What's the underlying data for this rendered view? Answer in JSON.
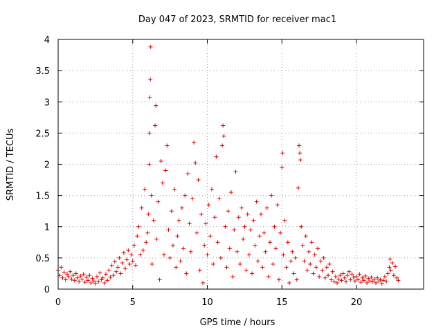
{
  "chart_data": {
    "type": "scatter",
    "title": "Day 047 of 2023, SRMTID for receiver mac1",
    "xlabel": "GPS time / hours",
    "ylabel": "SRMTID / TECUs",
    "xlim": [
      0,
      24.5
    ],
    "ylim": [
      0,
      4
    ],
    "xticks": [
      0,
      5,
      10,
      15,
      20
    ],
    "yticks": [
      0,
      0.5,
      1,
      1.5,
      2,
      2.5,
      3,
      3.5,
      4
    ],
    "xtick_labels": [
      "0",
      "5",
      "10",
      "15",
      "20"
    ],
    "ytick_labels": [
      "0",
      "0.5",
      "1",
      "1.5",
      "2",
      "2.5",
      "3",
      "3.5",
      "4"
    ],
    "grid": true,
    "marker": "+",
    "series": [
      {
        "name": "SRMTID",
        "color": "#e00000",
        "points": [
          [
            0.0,
            0.3
          ],
          [
            0.1,
            0.22
          ],
          [
            0.2,
            0.35
          ],
          [
            0.3,
            0.18
          ],
          [
            0.4,
            0.27
          ],
          [
            0.5,
            0.15
          ],
          [
            0.6,
            0.24
          ],
          [
            0.7,
            0.2
          ],
          [
            0.8,
            0.28
          ],
          [
            0.9,
            0.16
          ],
          [
            1.0,
            0.22
          ],
          [
            1.1,
            0.14
          ],
          [
            1.2,
            0.25
          ],
          [
            1.3,
            0.18
          ],
          [
            1.4,
            0.12
          ],
          [
            1.5,
            0.21
          ],
          [
            1.6,
            0.16
          ],
          [
            1.7,
            0.24
          ],
          [
            1.8,
            0.11
          ],
          [
            1.9,
            0.19
          ],
          [
            2.0,
            0.14
          ],
          [
            2.1,
            0.22
          ],
          [
            2.2,
            0.1
          ],
          [
            2.3,
            0.17
          ],
          [
            2.4,
            0.13
          ],
          [
            2.5,
            0.09
          ],
          [
            2.6,
            0.2
          ],
          [
            2.7,
            0.12
          ],
          [
            2.8,
            0.26
          ],
          [
            2.9,
            0.15
          ],
          [
            3.0,
            0.18
          ],
          [
            3.1,
            0.1
          ],
          [
            3.2,
            0.24
          ],
          [
            3.3,
            0.14
          ],
          [
            3.4,
            0.3
          ],
          [
            3.5,
            0.19
          ],
          [
            3.6,
            0.38
          ],
          [
            3.7,
            0.22
          ],
          [
            3.8,
            0.44
          ],
          [
            3.9,
            0.28
          ],
          [
            4.0,
            0.35
          ],
          [
            4.1,
            0.5
          ],
          [
            4.2,
            0.25
          ],
          [
            4.3,
            0.42
          ],
          [
            4.4,
            0.58
          ],
          [
            4.5,
            0.33
          ],
          [
            4.6,
            0.47
          ],
          [
            4.7,
            0.62
          ],
          [
            4.8,
            0.4
          ],
          [
            4.9,
            0.55
          ],
          [
            5.0,
            0.45
          ],
          [
            5.1,
            0.7
          ],
          [
            5.2,
            0.38
          ],
          [
            5.3,
            0.85
          ],
          [
            5.4,
            1.0
          ],
          [
            5.5,
            0.55
          ],
          [
            5.6,
            1.3
          ],
          [
            5.7,
            0.62
          ],
          [
            5.8,
            1.6
          ],
          [
            5.9,
            0.75
          ],
          [
            6.0,
            0.9
          ],
          [
            6.05,
            1.2
          ],
          [
            6.1,
            2.0
          ],
          [
            6.12,
            2.5
          ],
          [
            6.15,
            3.07
          ],
          [
            6.18,
            3.36
          ],
          [
            6.2,
            3.88
          ],
          [
            6.25,
            1.5
          ],
          [
            6.3,
            0.4
          ],
          [
            6.4,
            1.1
          ],
          [
            6.5,
            2.62
          ],
          [
            6.55,
            2.94
          ],
          [
            6.6,
            0.8
          ],
          [
            6.7,
            1.4
          ],
          [
            6.8,
            0.15
          ],
          [
            6.9,
            2.05
          ],
          [
            7.0,
            1.7
          ],
          [
            7.1,
            0.55
          ],
          [
            7.2,
            1.9
          ],
          [
            7.3,
            2.3
          ],
          [
            7.4,
            0.95
          ],
          [
            7.5,
            0.5
          ],
          [
            7.6,
            1.25
          ],
          [
            7.7,
            0.7
          ],
          [
            7.8,
            1.6
          ],
          [
            7.9,
            0.35
          ],
          [
            8.0,
            0.85
          ],
          [
            8.1,
            1.1
          ],
          [
            8.2,
            0.45
          ],
          [
            8.3,
            1.3
          ],
          [
            8.4,
            0.65
          ],
          [
            8.5,
            1.5
          ],
          [
            8.6,
            0.25
          ],
          [
            8.7,
            1.85
          ],
          [
            8.8,
            1.05
          ],
          [
            8.9,
            0.6
          ],
          [
            9.0,
            1.45
          ],
          [
            9.1,
            2.35
          ],
          [
            9.2,
            2.02
          ],
          [
            9.3,
            0.9
          ],
          [
            9.4,
            1.75
          ],
          [
            9.5,
            0.3
          ],
          [
            9.6,
            1.2
          ],
          [
            9.7,
            0.1
          ],
          [
            9.8,
            0.7
          ],
          [
            9.9,
            1.05
          ],
          [
            10.0,
            0.55
          ],
          [
            10.1,
            1.35
          ],
          [
            10.2,
            0.85
          ],
          [
            10.3,
            1.6
          ],
          [
            10.4,
            0.4
          ],
          [
            10.5,
            1.15
          ],
          [
            10.6,
            2.12
          ],
          [
            10.7,
            0.75
          ],
          [
            10.8,
            1.45
          ],
          [
            10.9,
            0.5
          ],
          [
            11.0,
            2.3
          ],
          [
            11.05,
            2.62
          ],
          [
            11.1,
            2.45
          ],
          [
            11.2,
            1.0
          ],
          [
            11.3,
            0.35
          ],
          [
            11.4,
            1.25
          ],
          [
            11.5,
            0.65
          ],
          [
            11.6,
            1.55
          ],
          [
            11.7,
            0.2
          ],
          [
            11.8,
            0.95
          ],
          [
            11.9,
            1.88
          ],
          [
            12.0,
            0.6
          ],
          [
            12.1,
            1.15
          ],
          [
            12.2,
            0.4
          ],
          [
            12.3,
            1.3
          ],
          [
            12.4,
            0.8
          ],
          [
            12.5,
            1.0
          ],
          [
            12.6,
            0.3
          ],
          [
            12.7,
            1.2
          ],
          [
            12.8,
            0.55
          ],
          [
            12.9,
            0.95
          ],
          [
            13.0,
            0.25
          ],
          [
            13.1,
            1.1
          ],
          [
            13.2,
            0.7
          ],
          [
            13.3,
            1.4
          ],
          [
            13.4,
            0.45
          ],
          [
            13.5,
            0.85
          ],
          [
            13.6,
            1.2
          ],
          [
            13.7,
            0.35
          ],
          [
            13.8,
            0.9
          ],
          [
            13.9,
            0.6
          ],
          [
            14.0,
            1.3
          ],
          [
            14.1,
            0.2
          ],
          [
            14.2,
            0.75
          ],
          [
            14.3,
            1.5
          ],
          [
            14.4,
            0.4
          ],
          [
            14.5,
            1.0
          ],
          [
            14.6,
            0.65
          ],
          [
            14.7,
            1.35
          ],
          [
            14.8,
            0.15
          ],
          [
            14.9,
            0.9
          ],
          [
            15.0,
            1.95
          ],
          [
            15.05,
            2.18
          ],
          [
            15.1,
            0.55
          ],
          [
            15.2,
            1.1
          ],
          [
            15.3,
            0.35
          ],
          [
            15.4,
            0.75
          ],
          [
            15.5,
            0.1
          ],
          [
            15.6,
            0.45
          ],
          [
            15.7,
            0.6
          ],
          [
            15.8,
            0.25
          ],
          [
            15.9,
            0.5
          ],
          [
            16.0,
            0.15
          ],
          [
            16.1,
            1.62
          ],
          [
            16.15,
            2.3
          ],
          [
            16.2,
            2.18
          ],
          [
            16.25,
            2.07
          ],
          [
            16.3,
            1.0
          ],
          [
            16.4,
            0.7
          ],
          [
            16.5,
            0.45
          ],
          [
            16.6,
            0.85
          ],
          [
            16.7,
            0.3
          ],
          [
            16.8,
            0.6
          ],
          [
            16.9,
            0.4
          ],
          [
            17.0,
            0.75
          ],
          [
            17.1,
            0.25
          ],
          [
            17.2,
            0.55
          ],
          [
            17.3,
            0.35
          ],
          [
            17.4,
            0.65
          ],
          [
            17.5,
            0.2
          ],
          [
            17.6,
            0.45
          ],
          [
            17.7,
            0.3
          ],
          [
            17.8,
            0.5
          ],
          [
            17.9,
            0.18
          ],
          [
            18.0,
            0.35
          ],
          [
            18.1,
            0.22
          ],
          [
            18.2,
            0.4
          ],
          [
            18.3,
            0.15
          ],
          [
            18.4,
            0.28
          ],
          [
            18.5,
            0.12
          ],
          [
            18.6,
            0.2
          ],
          [
            18.7,
            0.1
          ],
          [
            18.8,
            0.16
          ],
          [
            18.9,
            0.22
          ],
          [
            19.0,
            0.14
          ],
          [
            19.1,
            0.25
          ],
          [
            19.2,
            0.18
          ],
          [
            19.3,
            0.12
          ],
          [
            19.4,
            0.22
          ],
          [
            19.5,
            0.28
          ],
          [
            19.6,
            0.15
          ],
          [
            19.7,
            0.24
          ],
          [
            19.8,
            0.19
          ],
          [
            19.9,
            0.13
          ],
          [
            20.0,
            0.2
          ],
          [
            20.1,
            0.15
          ],
          [
            20.2,
            0.24
          ],
          [
            20.3,
            0.11
          ],
          [
            20.4,
            0.18
          ],
          [
            20.5,
            0.14
          ],
          [
            20.6,
            0.21
          ],
          [
            20.7,
            0.1
          ],
          [
            20.8,
            0.17
          ],
          [
            20.9,
            0.13
          ],
          [
            21.0,
            0.19
          ],
          [
            21.1,
            0.12
          ],
          [
            21.2,
            0.16
          ],
          [
            21.3,
            0.1
          ],
          [
            21.4,
            0.18
          ],
          [
            21.5,
            0.13
          ],
          [
            21.6,
            0.15
          ],
          [
            21.7,
            0.09
          ],
          [
            21.8,
            0.14
          ],
          [
            21.9,
            0.2
          ],
          [
            22.0,
            0.12
          ],
          [
            22.1,
            0.25
          ],
          [
            22.2,
            0.35
          ],
          [
            22.25,
            0.48
          ],
          [
            22.3,
            0.3
          ],
          [
            22.4,
            0.42
          ],
          [
            22.5,
            0.22
          ],
          [
            22.6,
            0.36
          ],
          [
            22.7,
            0.18
          ],
          [
            22.8,
            0.14
          ]
        ]
      }
    ]
  }
}
